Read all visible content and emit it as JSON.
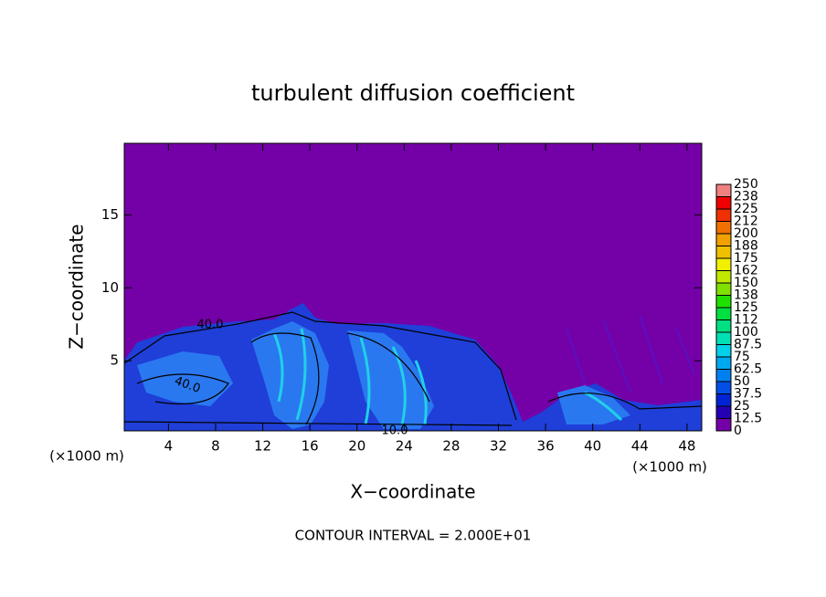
{
  "chart_data": {
    "type": "contour",
    "title": "turbulent diffusion coefficient",
    "x_label": "X−coordinate",
    "y_label": "Z−coordinate",
    "x_unit": "(×1000 m)",
    "x_unit_right": "(×1000 m)",
    "footer": "CONTOUR INTERVAL = 2.000E+01",
    "xlim": [
      0.25,
      49.25
    ],
    "ylim": [
      0.2,
      19.9
    ],
    "xticks": [
      4,
      8,
      12,
      16,
      20,
      24,
      28,
      32,
      36,
      40,
      44,
      48
    ],
    "yticks": [
      5,
      10,
      15
    ],
    "contour_labels": [
      "40.0",
      "40.0",
      "10.0"
    ],
    "colorbar": {
      "ticks": [
        0,
        12.5,
        25,
        37.5,
        50,
        62.5,
        75,
        87.5,
        100,
        {
          "value": 112.5,
          "label": "112"
        },
        125,
        {
          "value": 137.5,
          "label": "138"
        },
        150,
        {
          "value": 162.5,
          "label": "162"
        },
        175,
        {
          "value": 187.5,
          "label": "188"
        },
        200,
        {
          "value": 212.5,
          "label": "212"
        },
        225,
        {
          "value": 237.5,
          "label": "238"
        },
        250
      ],
      "colors": [
        "#7400a8",
        "#2400b4",
        "#0024d4",
        "#0050e8",
        "#0080f0",
        "#00a8f0",
        "#00d0e8",
        "#00e0b4",
        "#00e080",
        "#00e040",
        "#20e000",
        "#80e000",
        "#c0e800",
        "#f0f000",
        "#f0c000",
        "#f0a000",
        "#f07000",
        "#f03000",
        "#f00000",
        "#f08080"
      ]
    }
  }
}
